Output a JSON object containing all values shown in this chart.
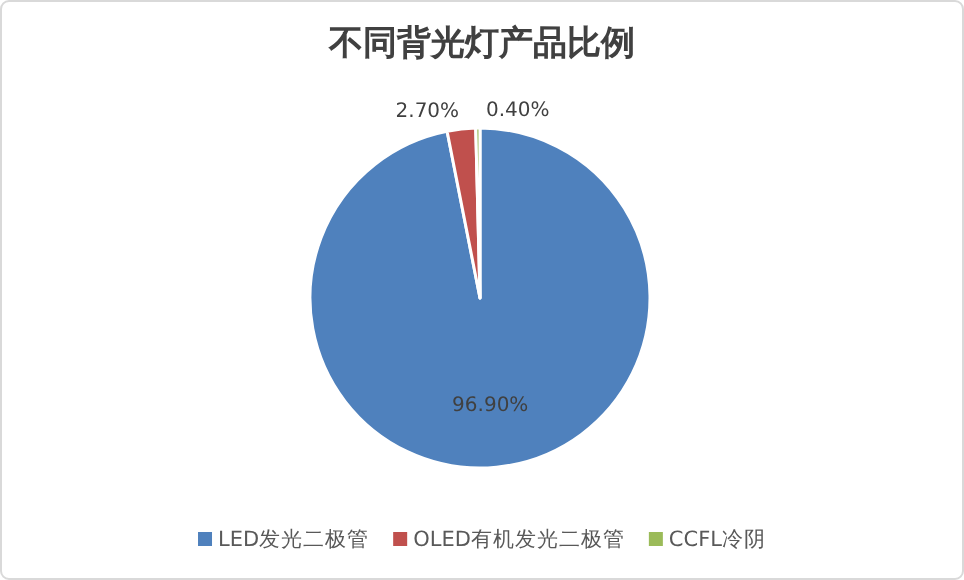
{
  "chart_data": {
    "type": "pie",
    "title": "不同背光灯产品比例",
    "categories": [
      "LED发光二极管",
      "OLED有机发光二极管",
      "CCFL冷阴"
    ],
    "values": [
      96.9,
      2.7,
      0.4
    ],
    "colors": [
      "#4f81bd",
      "#c0504d",
      "#9bbb59"
    ],
    "value_labels": [
      "96.90%",
      "2.70%",
      "0.40%"
    ],
    "legend": "bottom"
  }
}
